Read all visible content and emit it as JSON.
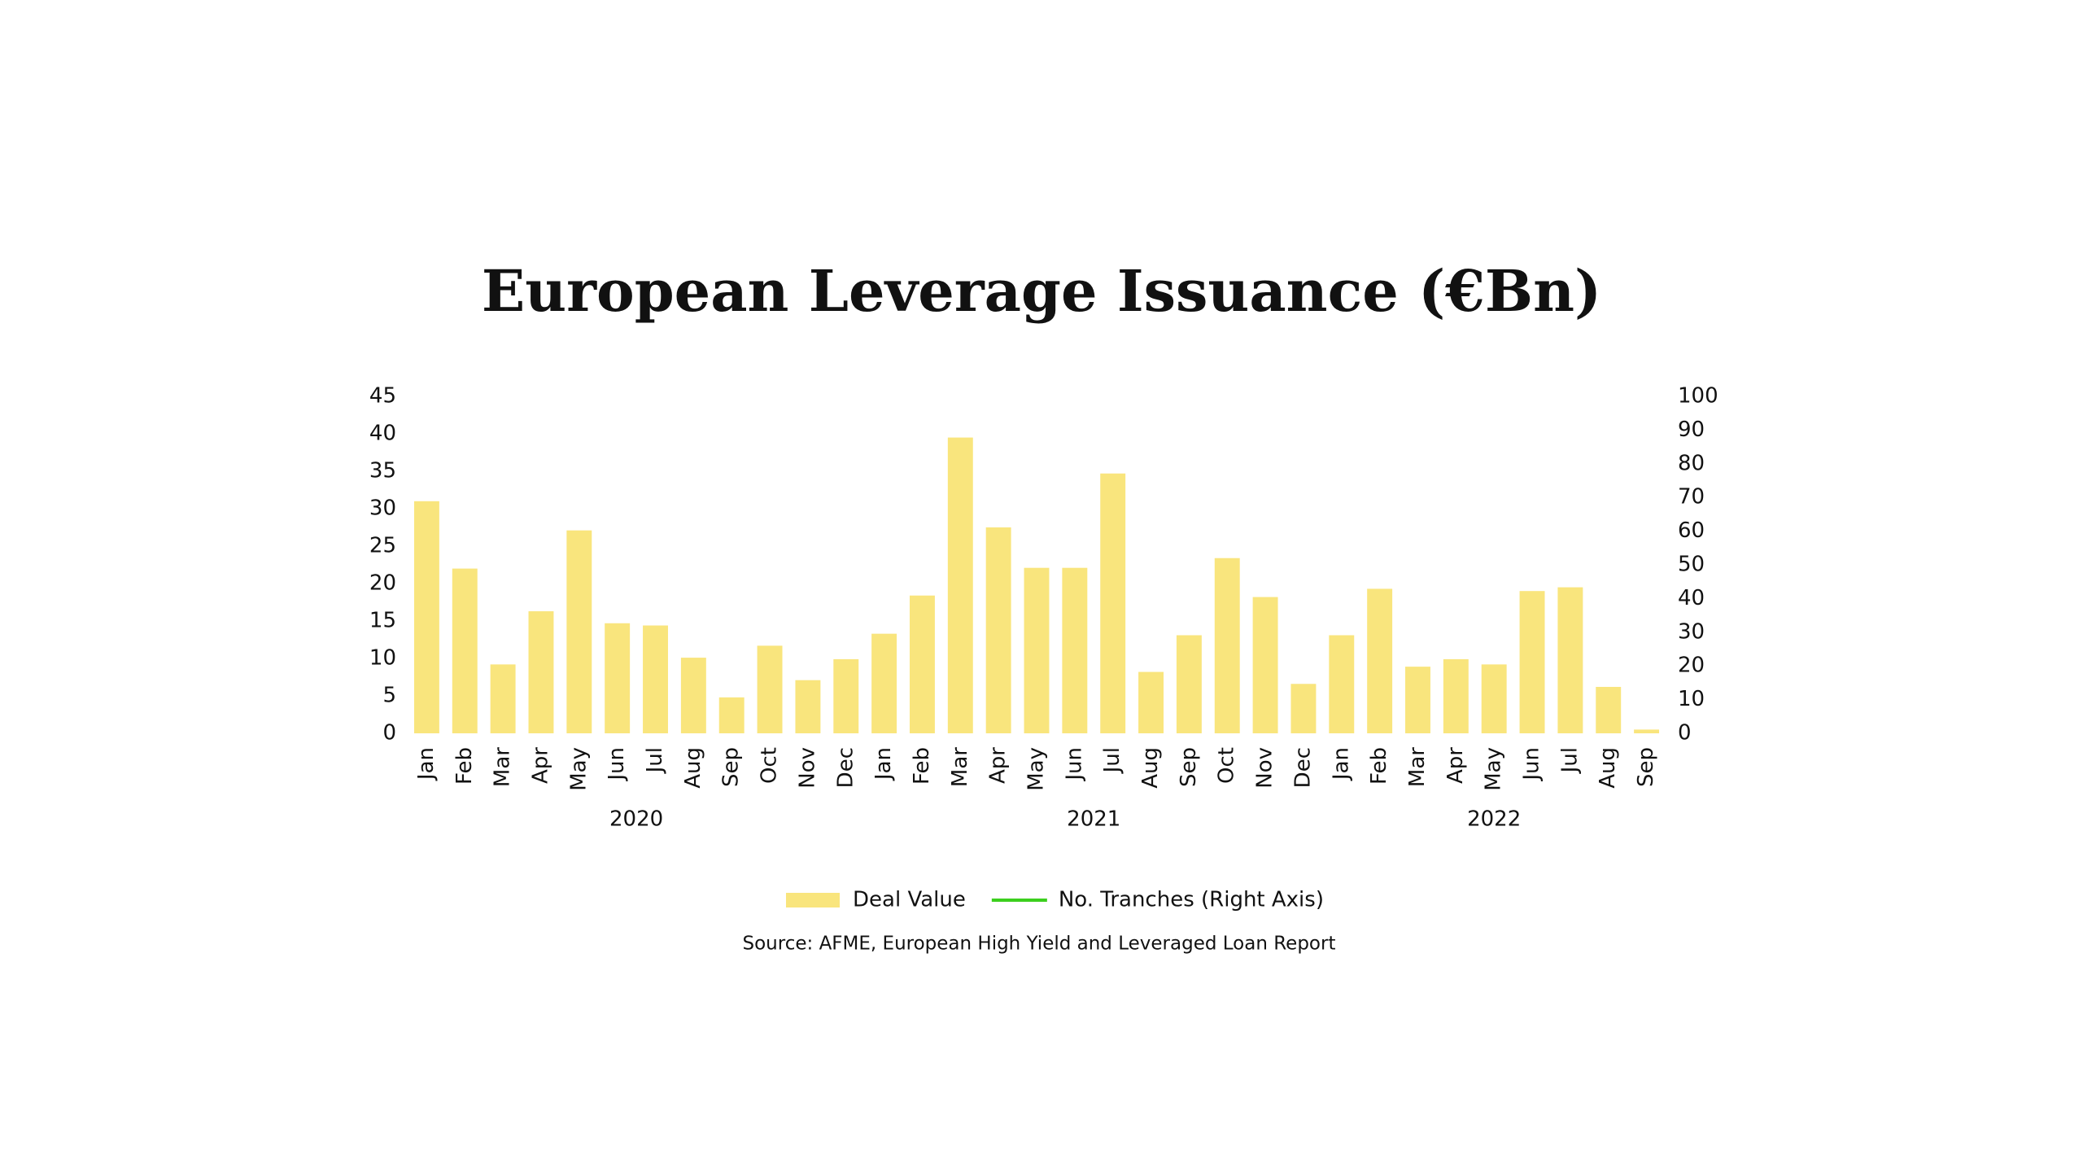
{
  "chart_data": {
    "type": "bar",
    "title": "European Leverage Issuance (€Bn)",
    "categories": [
      "Jan",
      "Feb",
      "Mar",
      "Apr",
      "May",
      "Jun",
      "Jul",
      "Aug",
      "Sep",
      "Oct",
      "Nov",
      "Dec",
      "Jan",
      "Feb",
      "Mar",
      "Apr",
      "May",
      "Jun",
      "Jul",
      "Aug",
      "Sep",
      "Oct",
      "Nov",
      "Dec",
      "Jan",
      "Feb",
      "Mar",
      "Apr",
      "May",
      "Jun",
      "Jul",
      "Aug",
      "Sep"
    ],
    "category_groups": [
      {
        "label": "2020",
        "count": 12
      },
      {
        "label": "2021",
        "count": 12
      },
      {
        "label": "2022",
        "count": 9
      }
    ],
    "series": [
      {
        "name": "Deal Value",
        "color": "#f9e57d",
        "values": [
          31.0,
          22.0,
          9.2,
          16.3,
          27.1,
          14.7,
          14.4,
          10.1,
          4.8,
          11.7,
          7.1,
          9.9,
          13.3,
          18.4,
          39.5,
          27.5,
          22.1,
          22.1,
          34.7,
          8.2,
          13.1,
          23.4,
          18.2,
          6.6,
          13.1,
          19.3,
          8.9,
          9.9,
          9.2,
          19.0,
          19.5,
          6.2,
          0.5
        ]
      },
      {
        "name": "No. Tranches (Right Axis)",
        "color": "#3ccf1e",
        "axis": "y2",
        "values": [
          null,
          null,
          null,
          null,
          null,
          null,
          null,
          null,
          null,
          null,
          null,
          null,
          null,
          null,
          null,
          null,
          null,
          null,
          null,
          null,
          null,
          null,
          null,
          null,
          null,
          null,
          null,
          null,
          null,
          null,
          null,
          null,
          null
        ]
      }
    ],
    "ylim": [
      0,
      45
    ],
    "yticks": [
      0,
      5,
      10,
      15,
      20,
      25,
      30,
      35,
      40,
      45
    ],
    "y2lim": [
      0,
      100
    ],
    "y2ticks": [
      0,
      10,
      20,
      30,
      40,
      50,
      60,
      70,
      80,
      90,
      100
    ],
    "grid": false,
    "legend": "bottom",
    "source": "Source:  AFME, European High Yield and Leveraged Loan Report"
  }
}
